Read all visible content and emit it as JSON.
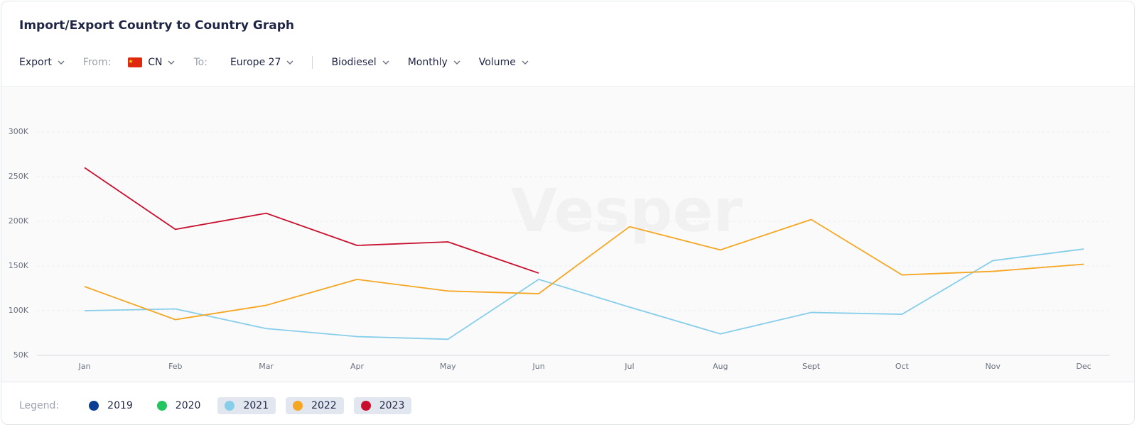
{
  "title": "Import/Export Country to Country Graph",
  "toolbar": {
    "direction": "Export",
    "from_label": "From:",
    "from": "CN",
    "to_label": "To:",
    "to": "Europe 27",
    "product": "Biodiesel",
    "frequency": "Monthly",
    "measure": "Volume"
  },
  "watermark": "Vesper",
  "legend_label": "Legend:",
  "chart_data": {
    "type": "line",
    "categories": [
      "Jan",
      "Feb",
      "Mar",
      "Apr",
      "May",
      "Jun",
      "Jul",
      "Aug",
      "Sept",
      "Oct",
      "Nov",
      "Dec"
    ],
    "ylim": [
      50000,
      350000
    ],
    "yticks": [
      {
        "value": 50000,
        "label": "50K"
      },
      {
        "value": 100000,
        "label": "100K"
      },
      {
        "value": 150000,
        "label": "150K"
      },
      {
        "value": 200000,
        "label": "200K"
      },
      {
        "value": 250000,
        "label": "250K"
      },
      {
        "value": 300000,
        "label": "300K"
      }
    ],
    "grid": true,
    "series": [
      {
        "name": "2019",
        "color": "#0b3f94",
        "active": false,
        "values": [
          null,
          null,
          null,
          null,
          null,
          null,
          null,
          null,
          null,
          null,
          null,
          null
        ]
      },
      {
        "name": "2020",
        "color": "#22c55e",
        "active": false,
        "values": [
          null,
          null,
          null,
          null,
          null,
          null,
          null,
          null,
          null,
          null,
          null,
          null
        ]
      },
      {
        "name": "2021",
        "color": "#87ceeb",
        "active": true,
        "values": [
          100000,
          102000,
          80000,
          71000,
          68000,
          135000,
          104000,
          74000,
          98000,
          96000,
          156000,
          169000
        ]
      },
      {
        "name": "2022",
        "color": "#f5a623",
        "active": true,
        "values": [
          127000,
          90000,
          106000,
          135000,
          122000,
          119000,
          194000,
          168000,
          202000,
          140000,
          144000,
          152000
        ]
      },
      {
        "name": "2023",
        "color": "#c8102e",
        "active": true,
        "values": [
          260000,
          191000,
          209000,
          173000,
          177000,
          142000,
          null,
          null,
          null,
          null,
          null,
          null
        ]
      }
    ]
  }
}
